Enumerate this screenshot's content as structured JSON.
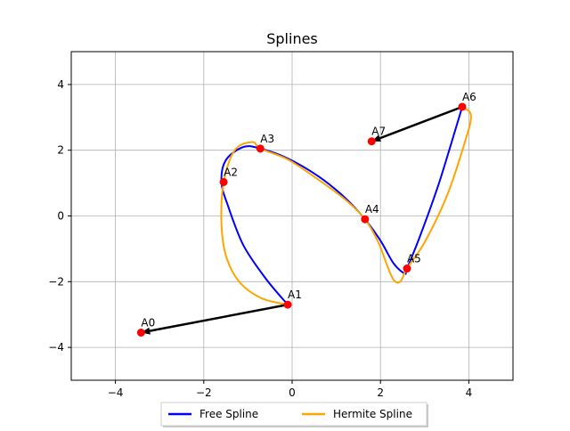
{
  "chart_data": {
    "type": "line",
    "title": "Splines",
    "xlabel": "",
    "ylabel": "",
    "xlim": [
      -5,
      5
    ],
    "ylim": [
      -5,
      5
    ],
    "xticks": [
      -4,
      -2,
      0,
      2,
      4
    ],
    "yticks": [
      -4,
      -2,
      0,
      2,
      4
    ],
    "x_tick_labels": [
      "−4",
      "−2",
      "0",
      "2",
      "4"
    ],
    "y_tick_labels": [
      "−4",
      "−2",
      "0",
      "2",
      "4"
    ],
    "grid": true,
    "legend_position": "bottom-center",
    "control_points": [
      {
        "label": "A0",
        "x": -3.42,
        "y": -3.55
      },
      {
        "label": "A1",
        "x": -0.1,
        "y": -2.7
      },
      {
        "label": "A2",
        "x": -1.55,
        "y": 1.03
      },
      {
        "label": "A3",
        "x": -0.72,
        "y": 2.05
      },
      {
        "label": "A4",
        "x": 1.65,
        "y": -0.1
      },
      {
        "label": "A5",
        "x": 2.6,
        "y": -1.6
      },
      {
        "label": "A6",
        "x": 3.85,
        "y": 3.32
      },
      {
        "label": "A7",
        "x": 1.8,
        "y": 2.27
      }
    ],
    "tangent_arrows": [
      {
        "from": [
          -0.1,
          -2.7
        ],
        "to": [
          -3.42,
          -3.55
        ]
      },
      {
        "from": [
          3.85,
          3.32
        ],
        "to": [
          1.8,
          2.27
        ]
      }
    ],
    "series": [
      {
        "name": "Free Spline",
        "color": "#0000ff",
        "x": [
          -0.1,
          -0.6,
          -1.1,
          -1.45,
          -1.6,
          -1.5,
          -1.1,
          -0.72,
          -0.1,
          0.6,
          1.2,
          1.65,
          2.0,
          2.3,
          2.55,
          2.6,
          2.9,
          3.3,
          3.6,
          3.85
        ],
        "y": [
          -2.7,
          -1.9,
          -0.9,
          0.3,
          1.03,
          1.7,
          2.1,
          2.05,
          1.75,
          1.2,
          0.55,
          -0.1,
          -0.75,
          -1.45,
          -1.75,
          -1.6,
          -0.6,
          0.9,
          2.2,
          3.32
        ]
      },
      {
        "name": "Hermite Spline",
        "color": "#ffa500",
        "x": [
          -0.1,
          -0.7,
          -1.2,
          -1.5,
          -1.6,
          -1.55,
          -1.3,
          -0.9,
          -0.72,
          -0.1,
          0.6,
          1.2,
          1.65,
          1.95,
          2.15,
          2.3,
          2.45,
          2.6,
          3.0,
          3.5,
          3.9,
          4.05,
          3.85
        ],
        "y": [
          -2.7,
          -2.5,
          -2.0,
          -1.2,
          -0.2,
          1.03,
          2.0,
          2.25,
          2.05,
          1.72,
          1.1,
          0.5,
          -0.1,
          -0.8,
          -1.5,
          -1.95,
          -2.0,
          -1.6,
          -0.8,
          0.6,
          2.2,
          3.05,
          3.32
        ]
      }
    ]
  }
}
